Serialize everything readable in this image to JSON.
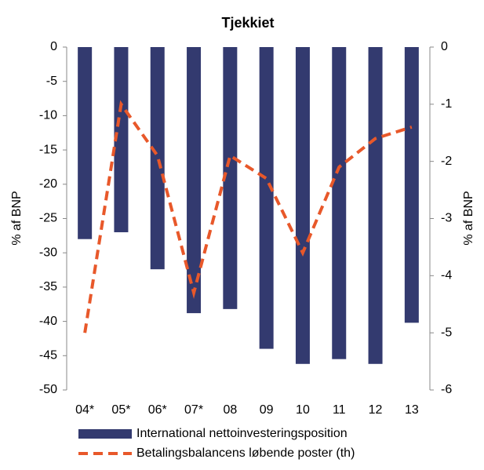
{
  "chart_data": {
    "type": "bar_line",
    "title": "Tjekkiet",
    "categories": [
      "04*",
      "05*",
      "06*",
      "07*",
      "08",
      "09",
      "10",
      "11",
      "12",
      "13"
    ],
    "series": [
      {
        "name": "International nettoinvesteringsposition",
        "color": "#333a6f",
        "type": "bar",
        "values": [
          -28,
          -27,
          -32.4,
          -38.8,
          -38.2,
          -44,
          -46.2,
          -45.5,
          -46.2,
          -40.2
        ]
      },
      {
        "name": "Betalingsbalancens løbende poster (th)",
        "color": "#e8582a",
        "type": "line",
        "axis": "y2",
        "values": [
          -5.0,
          -1.0,
          -1.9,
          -4.3,
          -1.9,
          -2.3,
          -3.6,
          -2.1,
          -1.6,
          -1.4
        ]
      }
    ],
    "ylabel": "% af BNP",
    "y2label": "% af BNP",
    "ylim": [
      -50,
      0
    ],
    "yticks": [
      0,
      -5,
      -10,
      -15,
      -20,
      -25,
      -30,
      -35,
      -40,
      -45,
      -50
    ],
    "y2lim": [
      -6,
      0
    ],
    "y2ticks": [
      0,
      -1,
      -2,
      -3,
      -4,
      -5,
      -6
    ]
  }
}
